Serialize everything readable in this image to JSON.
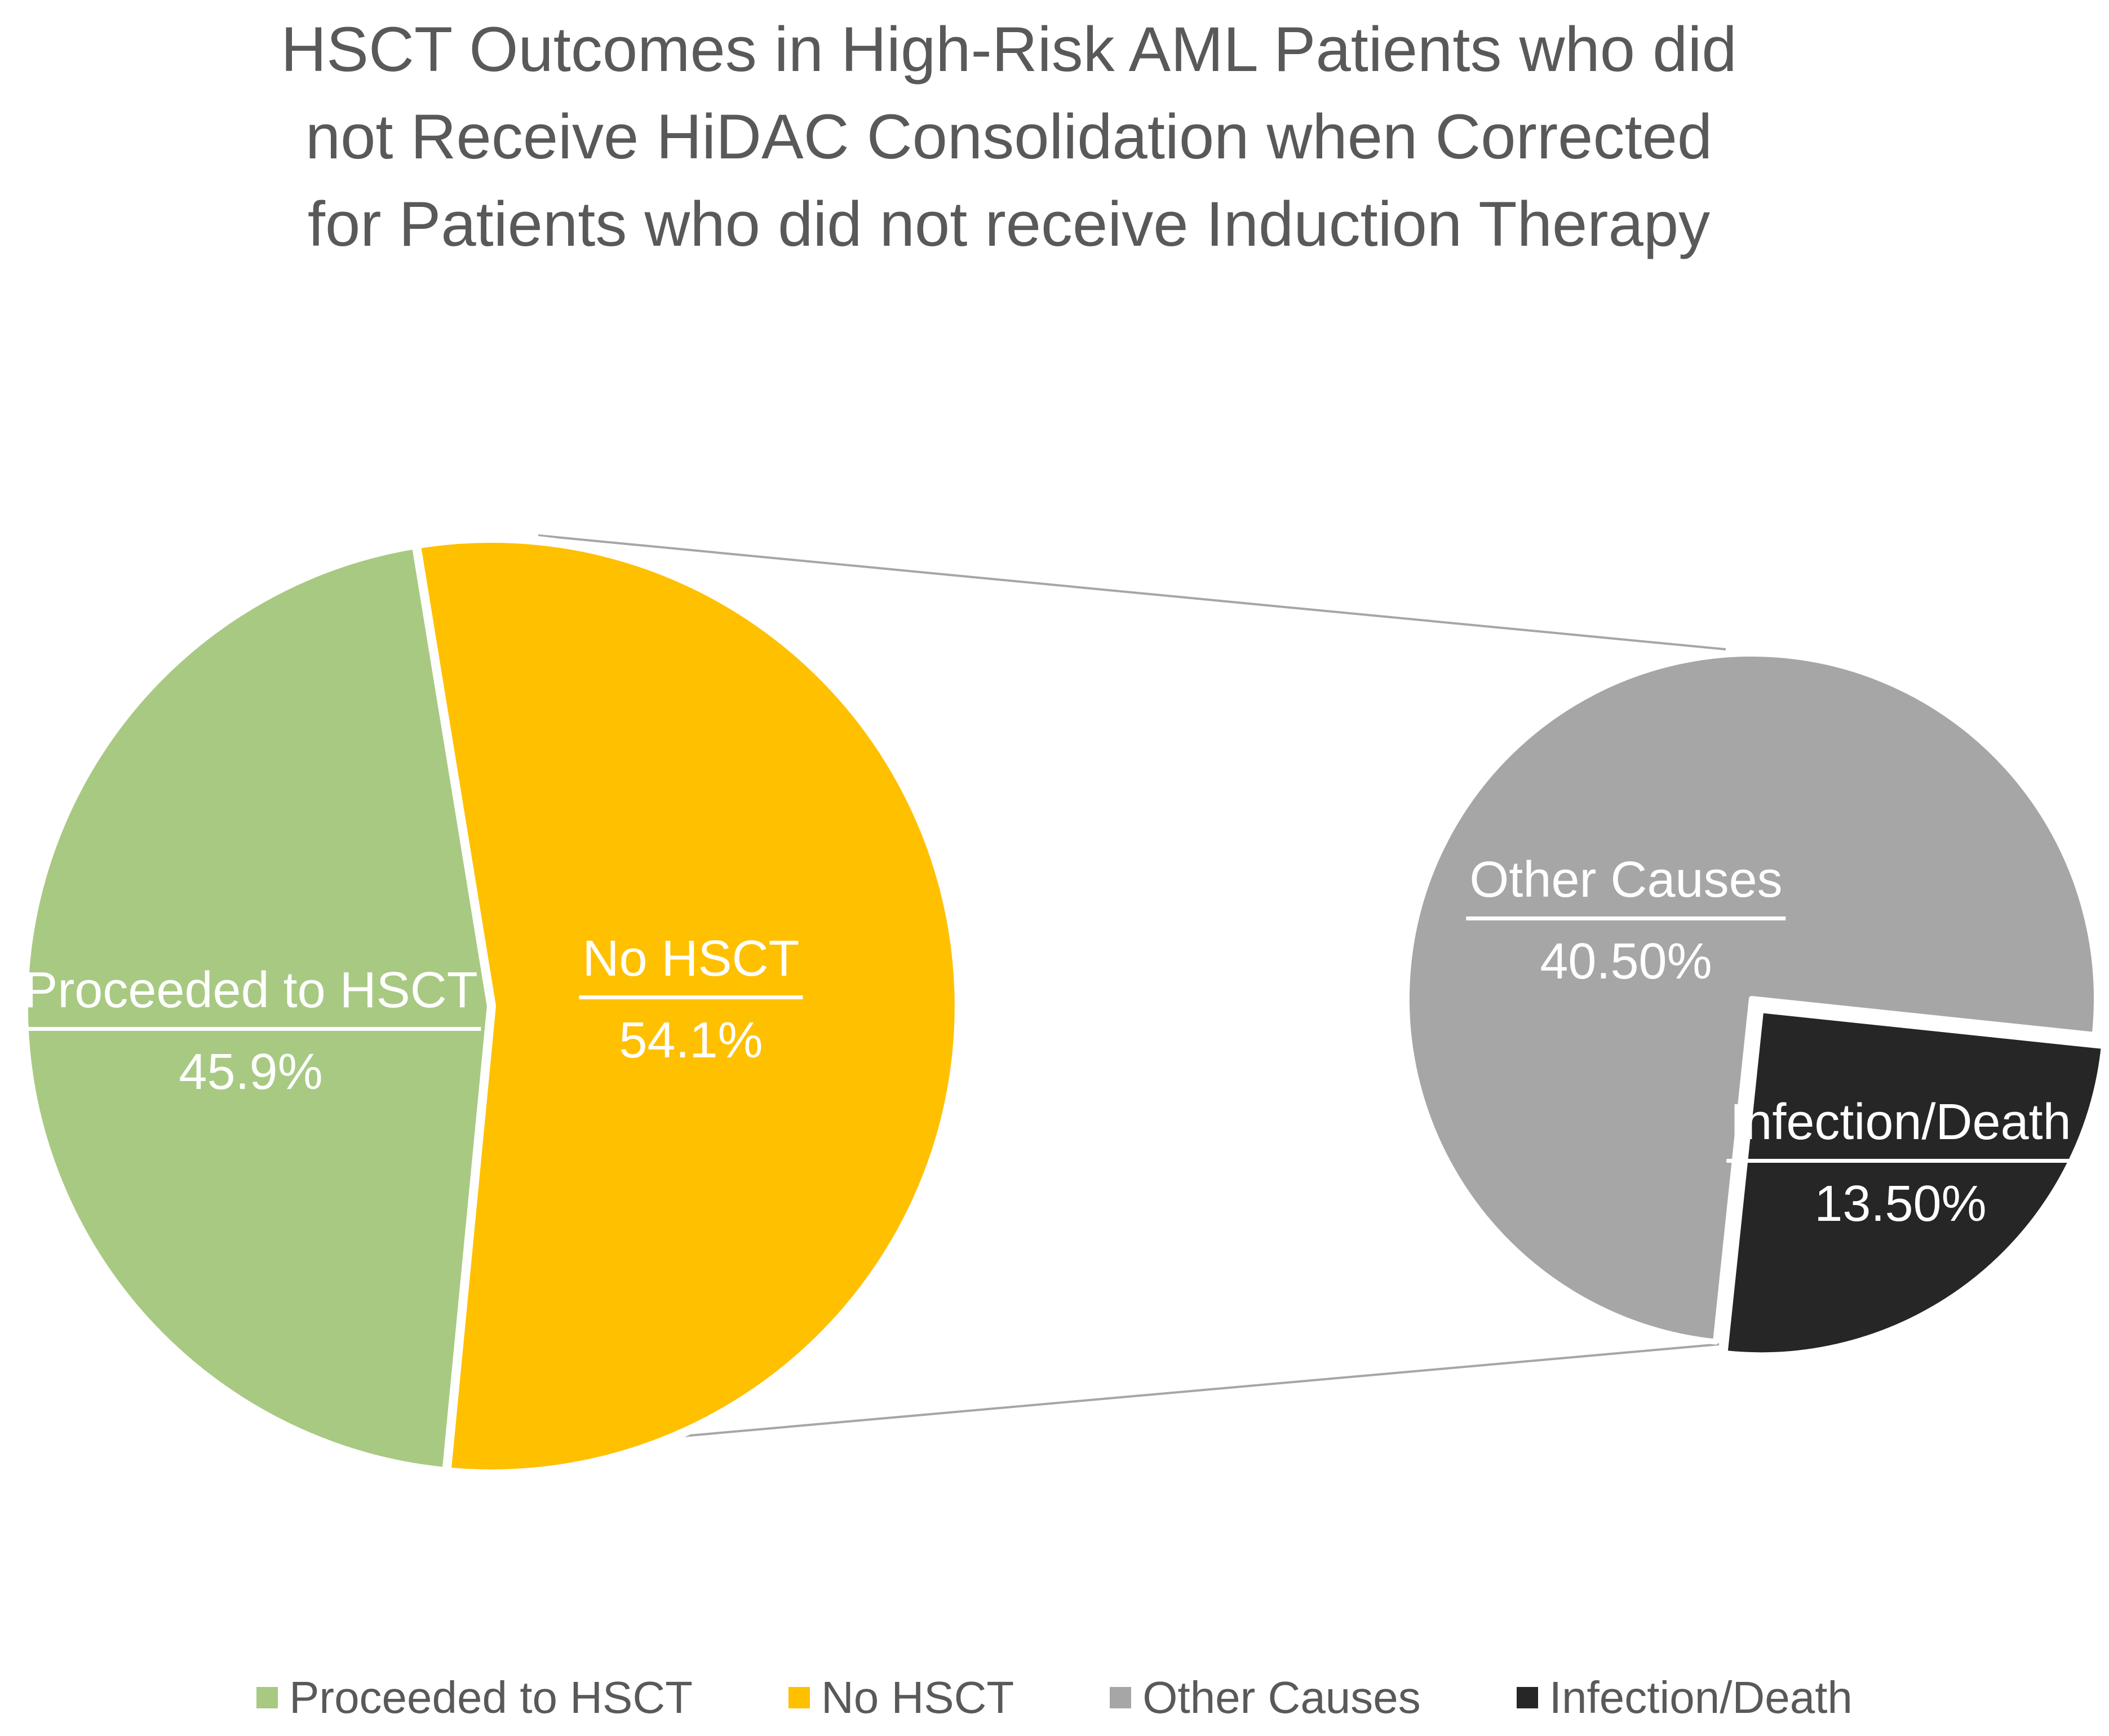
{
  "title": {
    "full": "HSCT Outcomes in High-Risk AML Patients who did not Receive HiDAC Consolidation when Corrected for Patients who did not receive Induction Therapy",
    "lines": [
      "HSCT Outcomes in High-Risk AML Patients who did",
      "not Receive HiDAC Consolidation when Corrected",
      "for Patients who did not receive Induction Therapy"
    ]
  },
  "chart_data": {
    "type": "pie",
    "variant": "pie-of-pie",
    "title": "HSCT Outcomes in High-Risk AML Patients who did not Receive HiDAC Consolidation when Corrected for Patients who did not receive Induction Therapy",
    "background_color": "#FFFFFF",
    "title_color": "#595959",
    "label_text_color": "#FFFFFF",
    "connector_line_color": "#A6A6A6",
    "main_pie": {
      "slices": [
        {
          "label": "Proceeded to HSCT",
          "pct": 45.9,
          "display": "45.9%",
          "color": "#A8C982",
          "exploded": false
        },
        {
          "label": "No HSCT",
          "pct": 54.1,
          "display": "54.1%",
          "color": "#FFC000",
          "exploded": false
        }
      ]
    },
    "secondary_pie": {
      "represents": "Breakdown of No HSCT slice",
      "slices": [
        {
          "label": "Other Causes",
          "pct": 40.5,
          "display": "40.50%",
          "color": "#A6A6A6",
          "exploded": false
        },
        {
          "label": "Infection/Death",
          "pct": 13.5,
          "display": "13.50%",
          "color": "#262626",
          "exploded": true
        }
      ]
    },
    "legend": {
      "position": "bottom",
      "entries": [
        {
          "label": "Proceeded to HSCT",
          "color": "#A8C982"
        },
        {
          "label": "No HSCT",
          "color": "#FFC000"
        },
        {
          "label": "Other Causes",
          "color": "#A6A6A6"
        },
        {
          "label": "Infection/Death",
          "color": "#262626"
        }
      ]
    }
  }
}
